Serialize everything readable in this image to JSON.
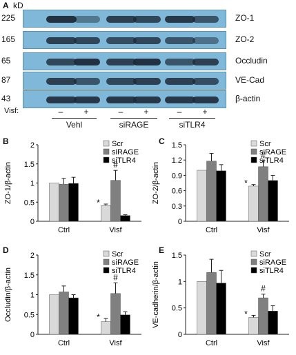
{
  "figure": {
    "panelA": {
      "letter": "A",
      "kd_unit": "kD",
      "rows": [
        {
          "kd": "225",
          "protein": "ZO-1"
        },
        {
          "kd": "165",
          "protein": "ZO-2"
        },
        {
          "kd": "65",
          "protein": "Occludin"
        },
        {
          "kd": "87",
          "protein": "VE-Cad"
        },
        {
          "kd": "43",
          "protein": "β-actin"
        }
      ],
      "treatment_label": "Visf:",
      "lane_signs": [
        "–",
        "+",
        "–",
        "+",
        "–",
        "+"
      ],
      "groups": [
        "Vehl",
        "siRAGE",
        "siTLR4"
      ]
    }
  },
  "chart_data": [
    {
      "panel": "B",
      "type": "bar",
      "categories": [
        "Ctrl",
        "Visf"
      ],
      "ylabel": "ZO-1/β-actin",
      "ylim": [
        0,
        2
      ],
      "yticks": [
        "0",
        "0.5",
        "1",
        "1.5",
        "2"
      ],
      "series": [
        {
          "name": "Scr",
          "values": [
            1.0,
            0.41
          ],
          "errors": [
            0.0,
            0.04
          ],
          "color": "#d9d9d9"
        },
        {
          "name": "siRAGE",
          "values": [
            0.97,
            1.07
          ],
          "errors": [
            0.15,
            0.26
          ],
          "color": "#808080"
        },
        {
          "name": "siTLR4",
          "values": [
            0.99,
            0.15
          ],
          "errors": [
            0.16,
            0.02
          ],
          "color": "#000000"
        }
      ],
      "annotations": [
        {
          "text": "*",
          "category": 1,
          "series": 0
        },
        {
          "text": "#",
          "category": 1,
          "series": 1
        }
      ],
      "legend": "top-right"
    },
    {
      "panel": "C",
      "type": "bar",
      "categories": [
        "Ctrl",
        "Visf"
      ],
      "ylabel": "ZO-2/β-actin",
      "ylim": [
        0,
        1.5
      ],
      "yticks": [
        "0",
        "0.3",
        "0.6",
        "0.9",
        "1.2",
        "1.5"
      ],
      "series": [
        {
          "name": "Scr",
          "values": [
            1.0,
            0.69
          ],
          "errors": [
            0.0,
            0.03
          ],
          "color": "#d9d9d9"
        },
        {
          "name": "siRAGE",
          "values": [
            1.18,
            1.07
          ],
          "errors": [
            0.15,
            0.12
          ],
          "color": "#808080"
        },
        {
          "name": "siTLR4",
          "values": [
            0.99,
            0.8
          ],
          "errors": [
            0.12,
            0.1
          ],
          "color": "#000000"
        }
      ],
      "annotations": [
        {
          "text": "*",
          "category": 1,
          "series": 0
        },
        {
          "text": "#",
          "category": 1,
          "series": 1
        }
      ],
      "legend": "top-right"
    },
    {
      "panel": "D",
      "type": "bar",
      "categories": [
        "Ctrl",
        "Visf"
      ],
      "ylabel": "Occludin/β-actin",
      "ylim": [
        0,
        2
      ],
      "yticks": [
        "0",
        "0.5",
        "1",
        "1.5",
        "2"
      ],
      "series": [
        {
          "name": "Scr",
          "values": [
            1.0,
            0.32
          ],
          "errors": [
            0.0,
            0.08
          ],
          "color": "#d9d9d9"
        },
        {
          "name": "siRAGE",
          "values": [
            1.07,
            1.03
          ],
          "errors": [
            0.15,
            0.27
          ],
          "color": "#808080"
        },
        {
          "name": "siTLR4",
          "values": [
            0.92,
            0.49
          ],
          "errors": [
            0.08,
            0.08
          ],
          "color": "#000000"
        }
      ],
      "annotations": [
        {
          "text": "*",
          "category": 1,
          "series": 0
        },
        {
          "text": "#",
          "category": 1,
          "series": 1
        }
      ],
      "legend": "top-right"
    },
    {
      "panel": "E",
      "type": "bar",
      "categories": [
        "Ctrl",
        "Visf"
      ],
      "ylabel": "VE-cadherin/β-actin",
      "ylim": [
        0,
        1.5
      ],
      "yticks": [
        "0",
        "0.5",
        "1",
        "1.5"
      ],
      "series": [
        {
          "name": "Scr",
          "values": [
            1.0,
            0.32
          ],
          "errors": [
            0.0,
            0.04
          ],
          "color": "#d9d9d9"
        },
        {
          "name": "siRAGE",
          "values": [
            1.17,
            0.69
          ],
          "errors": [
            0.25,
            0.07
          ],
          "color": "#808080"
        },
        {
          "name": "siTLR4",
          "values": [
            0.97,
            0.44
          ],
          "errors": [
            0.24,
            0.1
          ],
          "color": "#000000"
        }
      ],
      "annotations": [
        {
          "text": "*",
          "category": 1,
          "series": 0
        },
        {
          "text": "#",
          "category": 1,
          "series": 1
        }
      ],
      "legend": "top-right"
    }
  ]
}
